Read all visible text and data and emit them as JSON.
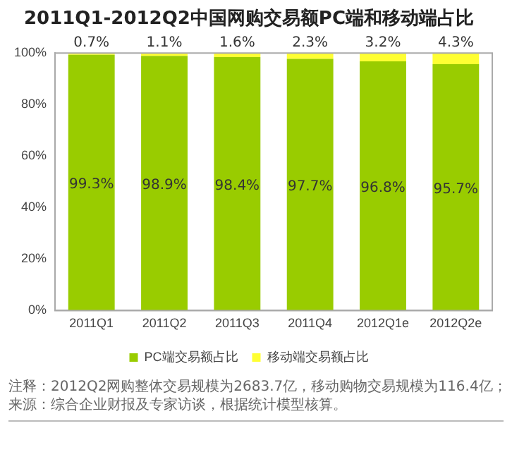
{
  "chart_data": {
    "type": "bar",
    "stacked": true,
    "title": "2011Q1-2012Q2中国网购交易额PC端和移动端占比",
    "categories": [
      "2011Q1",
      "2011Q2",
      "2011Q3",
      "2011Q4",
      "2012Q1e",
      "2012Q2e"
    ],
    "series": [
      {
        "name": "PC端交易额占比",
        "color": "#99cc00",
        "values": [
          99.3,
          98.9,
          98.4,
          97.7,
          96.8,
          95.7
        ],
        "value_labels": [
          "99.3%",
          "98.9%",
          "98.4%",
          "97.7%",
          "96.8%",
          "95.7%"
        ]
      },
      {
        "name": "移动端交易额占比",
        "color": "#ffff33",
        "values": [
          0.7,
          1.1,
          1.6,
          2.3,
          3.2,
          4.3
        ],
        "value_labels": [
          "0.7%",
          "1.1%",
          "1.6%",
          "2.3%",
          "3.2%",
          "4.3%"
        ]
      }
    ],
    "ylim": [
      0,
      100
    ],
    "yticks": [
      {
        "value": 0,
        "label": "0%"
      },
      {
        "value": 20,
        "label": "20%"
      },
      {
        "value": 40,
        "label": "40%"
      },
      {
        "value": 60,
        "label": "60%"
      },
      {
        "value": 80,
        "label": "80%"
      },
      {
        "value": 100,
        "label": "100%"
      }
    ],
    "grid": false,
    "legend": "bottom",
    "annotations": [
      "注释：2012Q2网购整体交易规模为2683.7亿，移动购物交易规模为116.4亿；",
      "来源：综合企业财报及专家访谈，根据统计模型核算。"
    ]
  }
}
